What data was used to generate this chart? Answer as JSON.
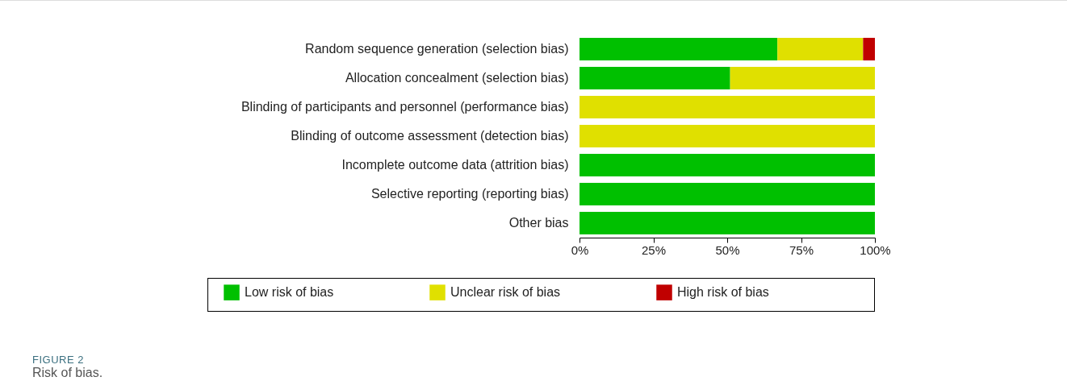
{
  "chart_data": {
    "type": "bar",
    "orientation": "horizontal",
    "stacked": true,
    "categories": [
      "Random sequence generation (selection bias)",
      "Allocation concealment (selection bias)",
      "Blinding of participants and personnel (performance bias)",
      "Blinding of outcome assessment (detection bias)",
      "Incomplete outcome data (attrition bias)",
      "Selective reporting (reporting bias)",
      "Other bias"
    ],
    "series": [
      {
        "name": "Low risk of bias",
        "color": "#00c000",
        "values": [
          67,
          51,
          0,
          0,
          100,
          100,
          100
        ]
      },
      {
        "name": "Unclear risk of bias",
        "color": "#e0e000",
        "values": [
          29,
          49,
          100,
          100,
          0,
          0,
          0
        ]
      },
      {
        "name": "High risk of bias",
        "color": "#c00000",
        "values": [
          4,
          0,
          0,
          0,
          0,
          0,
          0
        ]
      }
    ],
    "xlim": [
      0,
      100
    ],
    "xticks": [
      {
        "value": 0,
        "label": "0%"
      },
      {
        "value": 25,
        "label": "25%"
      },
      {
        "value": 50,
        "label": "50%"
      },
      {
        "value": 75,
        "label": "75%"
      },
      {
        "value": 100,
        "label": "100%"
      }
    ],
    "legend": "bottom",
    "annotations": [
      "FIGURE 2",
      "Risk of bias."
    ]
  }
}
